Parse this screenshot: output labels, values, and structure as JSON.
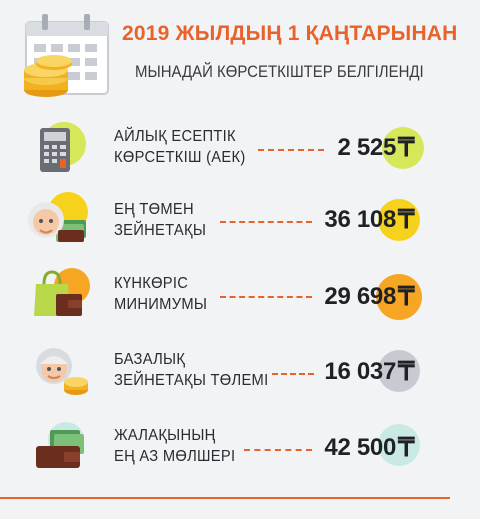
{
  "header": {
    "title": "2019 ЖЫЛДЫҢ 1 ҚАҢТАРЫНАН",
    "subtitle": "МЫНАДАЙ КӨРСЕТКІШТЕР БЕЛГІЛЕНДІ"
  },
  "currency_symbol": "₸",
  "colors": {
    "accent": "#e8622c",
    "lime": "#d6e85a",
    "yellow": "#f7d21c",
    "orange": "#f6a623",
    "gray": "#c7cbd1",
    "teal": "#c9e9e4"
  },
  "items": [
    {
      "line1": "АЙЛЫҚ ЕСЕПТІК",
      "line2": "КӨРСЕТКІШ (АЕК)",
      "value": "2 525",
      "icon": "calculator-icon"
    },
    {
      "line1": "ЕҢ ТӨМЕН",
      "line2": "ЗЕЙНЕТАҚЫ",
      "value": "36 108",
      "icon": "pensioner-icon"
    },
    {
      "line1": "КҮНКӨРІС",
      "line2": "МИНИМУМЫ",
      "value": "29 698",
      "icon": "shopping-bag-icon"
    },
    {
      "line1": "БАЗАЛЫҚ",
      "line2": "ЗЕЙНЕТАҚЫ ТӨЛЕМІ",
      "value": "16 037",
      "icon": "elderly-woman-icon"
    },
    {
      "line1": "ЖАЛАҚЫНЫҢ",
      "line2": "ЕҢ АЗ МӨЛШЕРІ",
      "value": "42 500",
      "icon": "wallet-icon"
    }
  ]
}
